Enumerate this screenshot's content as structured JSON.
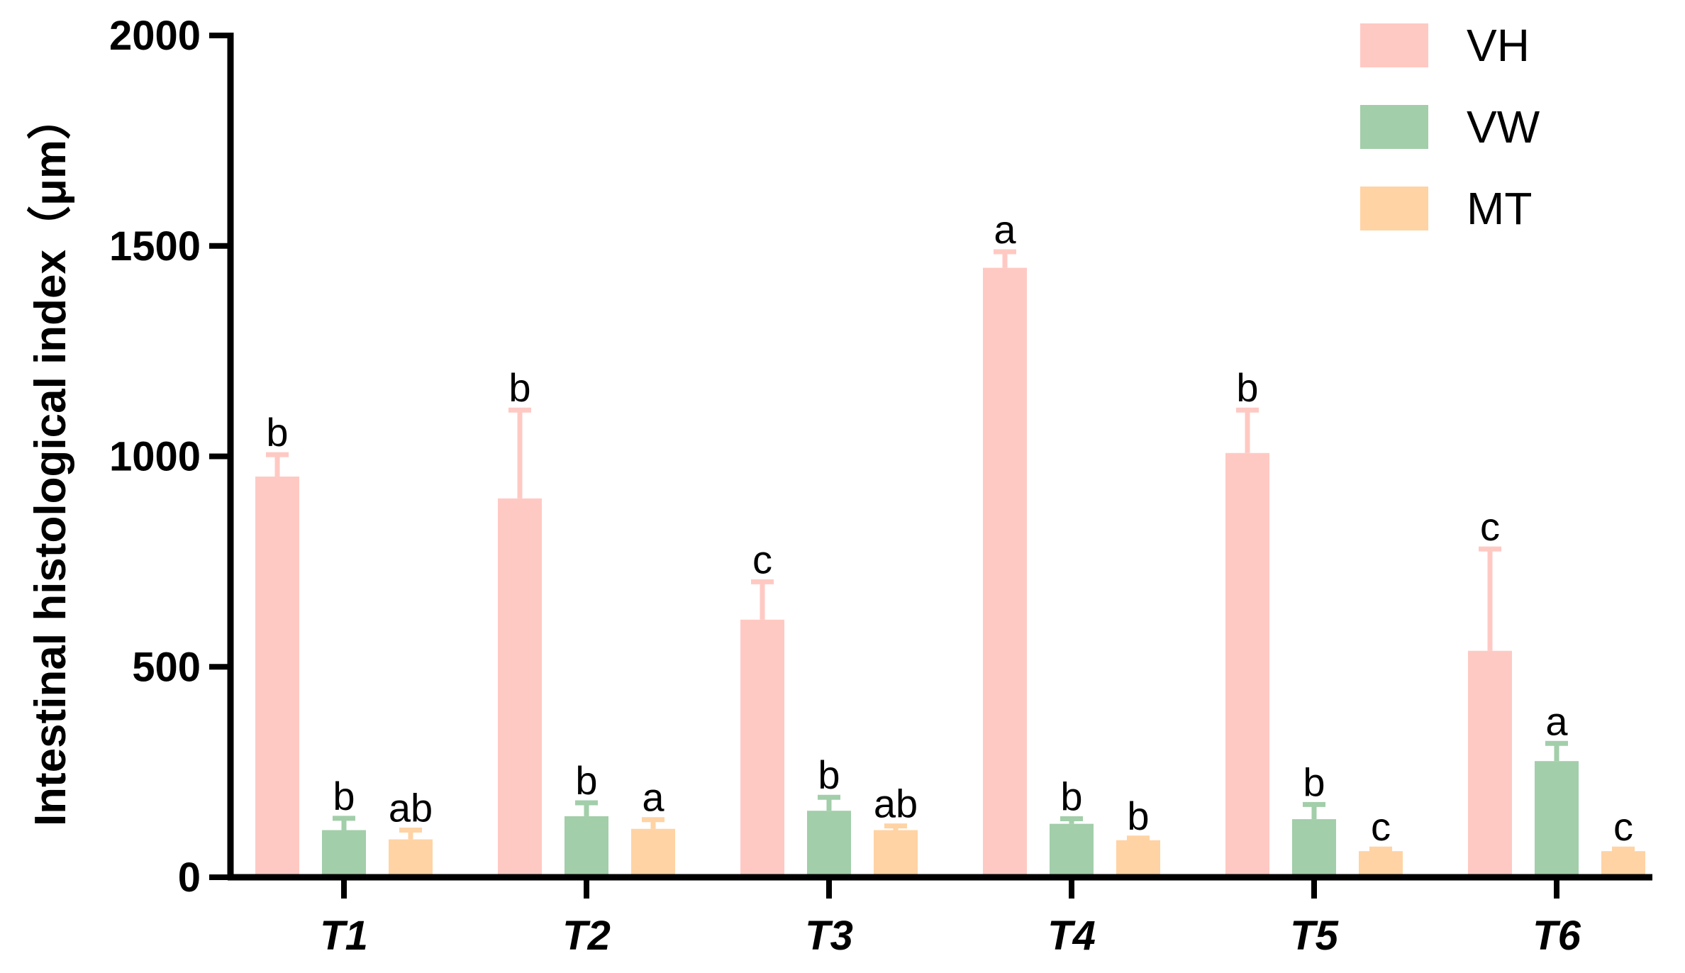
{
  "chart_data": {
    "type": "bar",
    "ylabel": "Intestinal histological index（μm）",
    "xlabel": "",
    "ylim": [
      0,
      2000
    ],
    "yticks": [
      0,
      500,
      1000,
      1500,
      2000
    ],
    "categories": [
      "T1",
      "T2",
      "T3",
      "T4",
      "T5",
      "T6"
    ],
    "legend_position": "top-right",
    "grid": false,
    "series": [
      {
        "name": "VH",
        "color": "#ffc9c3",
        "values": [
          952,
          900,
          612,
          1448,
          1008,
          538
        ],
        "errors": [
          52,
          210,
          90,
          38,
          102,
          242
        ],
        "letters": [
          "b",
          "b",
          "c",
          "a",
          "b",
          "c"
        ]
      },
      {
        "name": "VW",
        "color": "#a2ceaa",
        "values": [
          112,
          145,
          158,
          127,
          138,
          276
        ],
        "errors": [
          28,
          32,
          32,
          12,
          35,
          42
        ],
        "letters": [
          "b",
          "b",
          "b",
          "b",
          "b",
          "a"
        ]
      },
      {
        "name": "MT",
        "color": "#ffd3a4",
        "values": [
          90,
          115,
          112,
          88,
          62,
          62
        ],
        "errors": [
          22,
          22,
          10,
          5,
          5,
          5
        ],
        "letters": [
          "ab",
          "a",
          "ab",
          "b",
          "c",
          "c"
        ]
      }
    ]
  }
}
